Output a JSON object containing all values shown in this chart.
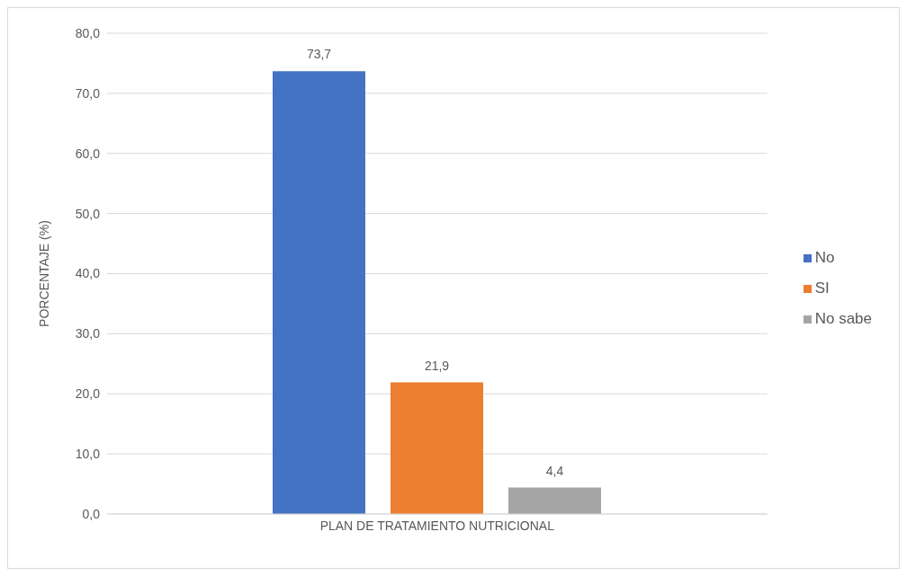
{
  "chart_data": {
    "type": "bar",
    "ylabel": "PORCENTAJE (%)",
    "categories": [
      "PLAN DE TRATAMIENTO NUTRICIONAL"
    ],
    "series": [
      {
        "name": "No",
        "color": "#4472c4",
        "values": [
          73.7
        ],
        "value_labels": [
          "73,7"
        ]
      },
      {
        "name": "SI",
        "color": "#ed7d31",
        "values": [
          21.9
        ],
        "value_labels": [
          "21,9"
        ]
      },
      {
        "name": "No sabe",
        "color": "#a5a5a5",
        "values": [
          4.4
        ],
        "value_labels": [
          "4,4"
        ]
      }
    ],
    "ylim": [
      0,
      80
    ],
    "yticks": [
      {
        "value": 0,
        "label": "0,0"
      },
      {
        "value": 10,
        "label": "10,0"
      },
      {
        "value": 20,
        "label": "20,0"
      },
      {
        "value": 30,
        "label": "30,0"
      },
      {
        "value": 40,
        "label": "40,0"
      },
      {
        "value": 50,
        "label": "50,0"
      },
      {
        "value": 60,
        "label": "60,0"
      },
      {
        "value": 70,
        "label": "70,0"
      },
      {
        "value": 80,
        "label": "80,0"
      }
    ],
    "grid": "y",
    "legend": "right"
  }
}
